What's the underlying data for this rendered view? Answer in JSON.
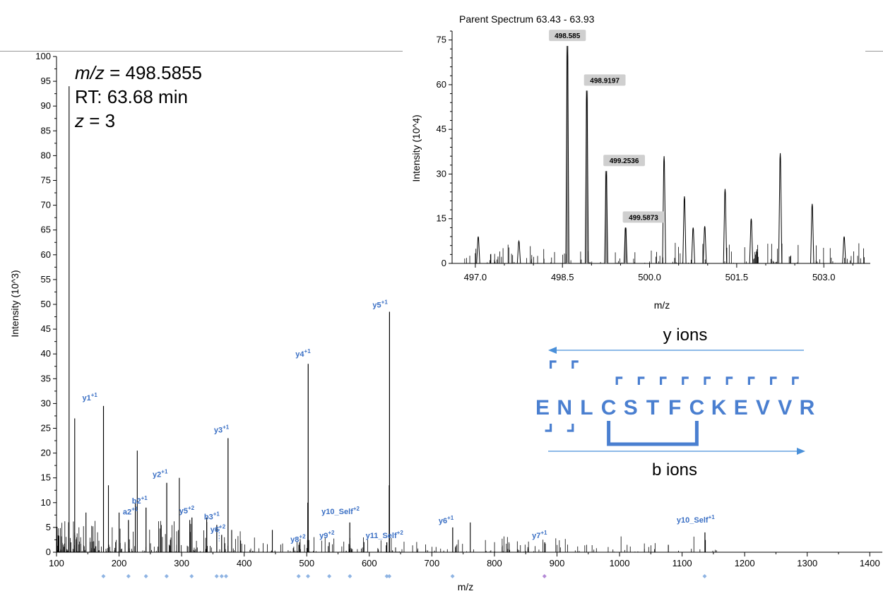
{
  "chart_data": [
    {
      "type": "bar",
      "ylabel": "Intensity (10^3)",
      "xlabel": "m/z",
      "xlim": [
        100,
        1420
      ],
      "ylim": [
        0,
        100
      ],
      "x_ticks": [
        100,
        200,
        300,
        400,
        500,
        600,
        700,
        800,
        900,
        1000,
        1100,
        1200,
        1300,
        1400
      ],
      "y_ticks": [
        0,
        5,
        10,
        15,
        20,
        25,
        30,
        35,
        40,
        45,
        50,
        55,
        60,
        65,
        70,
        75,
        80,
        85,
        90,
        95,
        100
      ],
      "grid": false,
      "annotation_lines": [
        "m/z = 498.5855",
        "RT: 63.68 min",
        "z = 3"
      ],
      "labeled_peaks": [
        {
          "x": 175.1,
          "y": 29.5,
          "name": "y1",
          "charge": "+1"
        },
        {
          "x": 215.0,
          "y": 6.5,
          "name": "a2",
          "charge": "+1"
        },
        {
          "x": 243.1,
          "y": 9.0,
          "name": "b2",
          "charge": "+1"
        },
        {
          "x": 276.2,
          "y": 14.0,
          "name": "y2",
          "charge": "+1"
        },
        {
          "x": 316.5,
          "y": 7.0,
          "name": "y5",
          "charge": "+2"
        },
        {
          "x": 356.2,
          "y": 5.5,
          "name": "b3",
          "charge": "+1"
        },
        {
          "x": 364.0,
          "y": 3.5,
          "name": "y6",
          "charge": "+2"
        },
        {
          "x": 374.2,
          "y": 23.0,
          "name": "y3",
          "charge": "+1"
        },
        {
          "x": 487.5,
          "y": 1.5,
          "name": "y8",
          "charge": "+2"
        },
        {
          "x": 502.3,
          "y": 38.0,
          "name": "y4",
          "charge": "+1"
        },
        {
          "x": 536.0,
          "y": 2.0,
          "name": "y9",
          "charge": "+2"
        },
        {
          "x": 568.8,
          "y": 6.0,
          "name": "y10_Self",
          "charge": "+2"
        },
        {
          "x": 628.0,
          "y": 2.0,
          "name": "y11_Self",
          "charge": "+2"
        },
        {
          "x": 632.3,
          "y": 48.5,
          "name": "y5",
          "charge": "+1"
        },
        {
          "x": 733.3,
          "y": 5.0,
          "name": "y6",
          "charge": "+1"
        },
        {
          "x": 880.4,
          "y": 2.0,
          "name": "y7",
          "charge": "+1"
        },
        {
          "x": 1136.5,
          "y": 4.0,
          "name": "y10_Self",
          "charge": "+1"
        }
      ],
      "unlabeled_peaks": [
        {
          "x": 120.1,
          "y": 94
        },
        {
          "x": 129.1,
          "y": 27
        },
        {
          "x": 147.1,
          "y": 8
        },
        {
          "x": 183.0,
          "y": 13.5
        },
        {
          "x": 200.0,
          "y": 8
        },
        {
          "x": 226.0,
          "y": 10
        },
        {
          "x": 229.1,
          "y": 20.5
        },
        {
          "x": 296.3,
          "y": 15
        },
        {
          "x": 313.0,
          "y": 6.5
        },
        {
          "x": 340.0,
          "y": 7
        },
        {
          "x": 380.0,
          "y": 4.5
        },
        {
          "x": 445.0,
          "y": 4.5
        },
        {
          "x": 501.6,
          "y": 10
        },
        {
          "x": 631.8,
          "y": 13.5
        },
        {
          "x": 761.4,
          "y": 6
        },
        {
          "x": 1078.0,
          "y": 1.5
        }
      ],
      "diamond_markers_x": [
        175,
        215,
        243,
        276,
        316,
        356,
        364,
        371,
        487,
        502,
        536,
        569,
        628,
        632,
        733,
        880,
        1136
      ]
    },
    {
      "type": "bar",
      "title": "Parent Spectrum 63.43 - 63.93",
      "ylabel": "Intensity (10^4)",
      "xlabel": "m/z",
      "xlim": [
        496.6,
        503.8
      ],
      "ylim": [
        0,
        78
      ],
      "x_ticks": [
        497.0,
        498.5,
        500.0,
        501.5,
        503.0
      ],
      "y_ticks": [
        0,
        15,
        30,
        45,
        60,
        75
      ],
      "grid": false,
      "labeled_peaks": [
        {
          "x": 498.585,
          "y": 73,
          "label": "498.585"
        },
        {
          "x": 498.9197,
          "y": 58,
          "label": "498.9197"
        },
        {
          "x": 499.2536,
          "y": 31,
          "label": "499.2536"
        },
        {
          "x": 499.5873,
          "y": 12,
          "label": "499.5873"
        }
      ],
      "unlabeled_peaks": [
        {
          "x": 500.25,
          "y": 36
        },
        {
          "x": 500.6,
          "y": 22.5
        },
        {
          "x": 500.75,
          "y": 12
        },
        {
          "x": 500.95,
          "y": 12.5
        },
        {
          "x": 501.3,
          "y": 25
        },
        {
          "x": 501.75,
          "y": 15
        },
        {
          "x": 502.25,
          "y": 37
        },
        {
          "x": 502.8,
          "y": 20
        },
        {
          "x": 503.35,
          "y": 9
        },
        {
          "x": 497.05,
          "y": 9
        },
        {
          "x": 497.75,
          "y": 7.5
        }
      ]
    }
  ],
  "peptide": {
    "sequence": [
      "E",
      "N",
      "L",
      "C",
      "S",
      "T",
      "F",
      "C",
      "K",
      "E",
      "V",
      "V",
      "R"
    ],
    "y_ions_label": "y ions",
    "b_ions_label": "b ions",
    "y_ion_after_index": [
      0,
      1,
      3,
      4,
      5,
      6,
      7,
      8,
      9,
      10,
      11
    ],
    "b_ion_before_index": [
      1,
      2
    ],
    "disulfide": [
      3,
      7
    ],
    "color": "#4a7fd0"
  }
}
